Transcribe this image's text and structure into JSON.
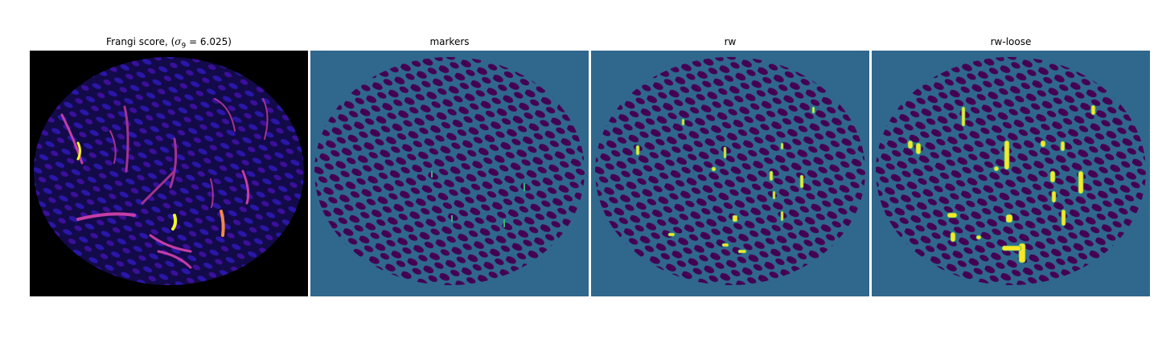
{
  "figure": {
    "panels": [
      {
        "id": "frangi",
        "title_prefix": "Frangi score, (",
        "title_math": "σ",
        "title_sub": "9",
        "title_suffix": " = 6.025)",
        "cmap": "plasma"
      },
      {
        "id": "markers",
        "title": "markers",
        "cmap": "viridis"
      },
      {
        "id": "rw",
        "title": "rw",
        "cmap": "viridis"
      },
      {
        "id": "rw-loose",
        "title": "rw-loose",
        "cmap": "viridis"
      }
    ],
    "colors": {
      "black": "#000000",
      "background_teal": "#30678d",
      "region_purple": "#440154",
      "highlight_yellow": "#fde725",
      "highlight_green": "#35b779",
      "plasma_blue": "#2a16a8",
      "plasma_magenta": "#c43ea5",
      "plasma_orange": "#f48849",
      "plasma_yellow": "#f0f921"
    }
  }
}
